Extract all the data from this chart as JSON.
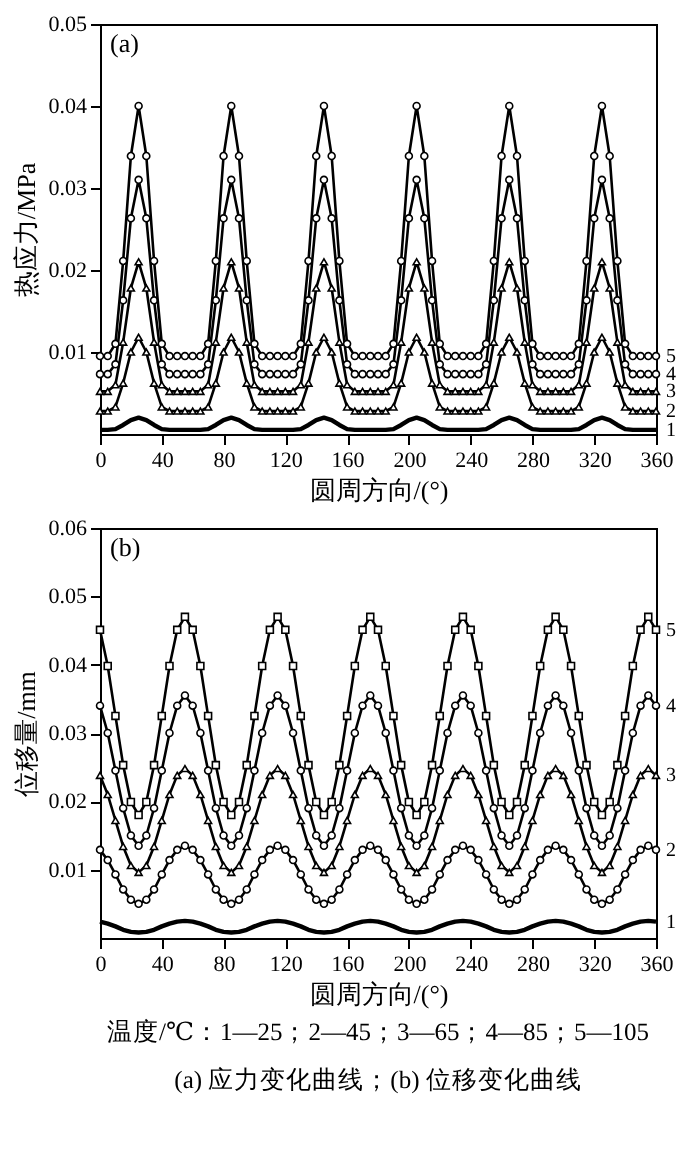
{
  "chart_data": [
    {
      "type": "line",
      "xlabel": "圆周方向/(°)",
      "ylabel": "热应力/MPa",
      "xlim": [
        0,
        360
      ],
      "xticks": [
        0,
        40,
        80,
        120,
        160,
        200,
        240,
        280,
        320,
        360
      ],
      "ylim": [
        0,
        0.05
      ],
      "yticks": [
        0.01,
        0.02,
        0.03,
        0.04,
        0.05
      ],
      "annotations": [
        "(a)"
      ],
      "x": [
        0,
        5,
        10,
        15,
        20,
        25,
        30,
        35,
        40,
        45,
        50,
        55,
        60,
        65,
        70,
        75,
        80,
        85,
        90,
        95,
        100,
        105,
        110,
        115,
        120,
        125,
        130,
        135,
        140,
        145,
        150,
        155,
        160,
        165,
        170,
        175,
        180,
        185,
        190,
        195,
        200,
        205,
        210,
        215,
        220,
        225,
        230,
        235,
        240,
        245,
        250,
        255,
        260,
        265,
        270,
        275,
        280,
        285,
        290,
        295,
        300,
        305,
        310,
        315,
        320,
        325,
        330,
        335,
        340,
        345,
        350,
        355,
        360
      ],
      "series": [
        {
          "name": "1",
          "color": "#000000",
          "values": [
            0.0005,
            0.0005,
            0.0006,
            0.0011,
            0.0017,
            0.002,
            0.0017,
            0.0011,
            0.0006,
            0.0005,
            0.0005,
            0.0005,
            0.0005,
            0.0005,
            0.0006,
            0.0011,
            0.0017,
            0.002,
            0.0017,
            0.0011,
            0.0006,
            0.0005,
            0.0005,
            0.0005,
            0.0005,
            0.0005,
            0.0006,
            0.0011,
            0.0017,
            0.002,
            0.0017,
            0.0011,
            0.0006,
            0.0005,
            0.0005,
            0.0005,
            0.0005,
            0.0005,
            0.0006,
            0.0011,
            0.0017,
            0.002,
            0.0017,
            0.0011,
            0.0006,
            0.0005,
            0.0005,
            0.0005,
            0.0005,
            0.0005,
            0.0006,
            0.0011,
            0.0017,
            0.002,
            0.0017,
            0.0011,
            0.0006,
            0.0005,
            0.0005,
            0.0005,
            0.0005,
            0.0005,
            0.0006,
            0.0011,
            0.0017,
            0.002,
            0.0017,
            0.0011,
            0.0006,
            0.0005,
            0.0005,
            0.0005,
            0.0005
          ]
        },
        {
          "name": "2",
          "color": "#000000",
          "marker": "triangle",
          "values": [
            0.0028,
            0.0028,
            0.0033,
            0.0062,
            0.01,
            0.0118,
            0.01,
            0.0062,
            0.0033,
            0.0028,
            0.0028,
            0.0028,
            0.0028,
            0.0028,
            0.0033,
            0.0062,
            0.01,
            0.0118,
            0.01,
            0.0062,
            0.0033,
            0.0028,
            0.0028,
            0.0028,
            0.0028,
            0.0028,
            0.0033,
            0.0062,
            0.01,
            0.0118,
            0.01,
            0.0062,
            0.0033,
            0.0028,
            0.0028,
            0.0028,
            0.0028,
            0.0028,
            0.0033,
            0.0062,
            0.01,
            0.0118,
            0.01,
            0.0062,
            0.0033,
            0.0028,
            0.0028,
            0.0028,
            0.0028,
            0.0028,
            0.0033,
            0.0062,
            0.01,
            0.0118,
            0.01,
            0.0062,
            0.0033,
            0.0028,
            0.0028,
            0.0028,
            0.0028,
            0.0028,
            0.0033,
            0.0062,
            0.01,
            0.0118,
            0.01,
            0.0062,
            0.0033,
            0.0028,
            0.0028,
            0.0028,
            0.0028
          ]
        },
        {
          "name": "3",
          "color": "#000000",
          "marker": "triangle",
          "values": [
            0.0052,
            0.0052,
            0.006,
            0.0112,
            0.0178,
            0.021,
            0.0178,
            0.0112,
            0.006,
            0.0052,
            0.0052,
            0.0052,
            0.0052,
            0.0052,
            0.006,
            0.0112,
            0.0178,
            0.021,
            0.0178,
            0.0112,
            0.006,
            0.0052,
            0.0052,
            0.0052,
            0.0052,
            0.0052,
            0.006,
            0.0112,
            0.0178,
            0.021,
            0.0178,
            0.0112,
            0.006,
            0.0052,
            0.0052,
            0.0052,
            0.0052,
            0.0052,
            0.006,
            0.0112,
            0.0178,
            0.021,
            0.0178,
            0.0112,
            0.006,
            0.0052,
            0.0052,
            0.0052,
            0.0052,
            0.0052,
            0.006,
            0.0112,
            0.0178,
            0.021,
            0.0178,
            0.0112,
            0.006,
            0.0052,
            0.0052,
            0.0052,
            0.0052,
            0.0052,
            0.006,
            0.0112,
            0.0178,
            0.021,
            0.0178,
            0.0112,
            0.006,
            0.0052,
            0.0052,
            0.0052,
            0.0052
          ]
        },
        {
          "name": "4",
          "color": "#000000",
          "marker": "circle",
          "values": [
            0.0073,
            0.0073,
            0.0085,
            0.0163,
            0.0263,
            0.031,
            0.0263,
            0.0163,
            0.0085,
            0.0073,
            0.0073,
            0.0073,
            0.0073,
            0.0073,
            0.0085,
            0.0163,
            0.0263,
            0.031,
            0.0263,
            0.0163,
            0.0085,
            0.0073,
            0.0073,
            0.0073,
            0.0073,
            0.0073,
            0.0085,
            0.0163,
            0.0263,
            0.031,
            0.0263,
            0.0163,
            0.0085,
            0.0073,
            0.0073,
            0.0073,
            0.0073,
            0.0073,
            0.0085,
            0.0163,
            0.0263,
            0.031,
            0.0263,
            0.0163,
            0.0085,
            0.0073,
            0.0073,
            0.0073,
            0.0073,
            0.0073,
            0.0085,
            0.0163,
            0.0263,
            0.031,
            0.0263,
            0.0163,
            0.0085,
            0.0073,
            0.0073,
            0.0073,
            0.0073,
            0.0073,
            0.0085,
            0.0163,
            0.0263,
            0.031,
            0.0263,
            0.0163,
            0.0085,
            0.0073,
            0.0073,
            0.0073,
            0.0073
          ]
        },
        {
          "name": "5",
          "color": "#000000",
          "marker": "circle",
          "values": [
            0.0095,
            0.0095,
            0.011,
            0.0211,
            0.0339,
            0.04,
            0.0339,
            0.0211,
            0.011,
            0.0095,
            0.0095,
            0.0095,
            0.0095,
            0.0095,
            0.011,
            0.0211,
            0.0339,
            0.04,
            0.0339,
            0.0211,
            0.011,
            0.0095,
            0.0095,
            0.0095,
            0.0095,
            0.0095,
            0.011,
            0.0211,
            0.0339,
            0.04,
            0.0339,
            0.0211,
            0.011,
            0.0095,
            0.0095,
            0.0095,
            0.0095,
            0.0095,
            0.011,
            0.0211,
            0.0339,
            0.04,
            0.0339,
            0.0211,
            0.011,
            0.0095,
            0.0095,
            0.0095,
            0.0095,
            0.0095,
            0.011,
            0.0211,
            0.0339,
            0.04,
            0.0339,
            0.0211,
            0.011,
            0.0095,
            0.0095,
            0.0095,
            0.0095,
            0.0095,
            0.011,
            0.0211,
            0.0339,
            0.04,
            0.0339,
            0.0211,
            0.011,
            0.0095,
            0.0095,
            0.0095,
            0.0095
          ]
        }
      ]
    },
    {
      "type": "line",
      "xlabel": "圆周方向/(°)",
      "ylabel": "位移量/mm",
      "xlim": [
        0,
        360
      ],
      "xticks": [
        0,
        40,
        80,
        120,
        160,
        200,
        240,
        280,
        320,
        360
      ],
      "ylim": [
        0,
        0.06
      ],
      "yticks": [
        0.01,
        0.02,
        0.03,
        0.04,
        0.05,
        0.06
      ],
      "annotations": [
        "(b)",
        "温度/℃：1—25；2—45；3—65；4—85；5—105",
        "(a) 应力变化曲线；(b) 位移变化曲线"
      ],
      "x": [
        0,
        5,
        10,
        15,
        20,
        25,
        30,
        35,
        40,
        45,
        50,
        55,
        60,
        65,
        70,
        75,
        80,
        85,
        90,
        95,
        100,
        105,
        110,
        115,
        120,
        125,
        130,
        135,
        140,
        145,
        150,
        155,
        160,
        165,
        170,
        175,
        180,
        185,
        190,
        195,
        200,
        205,
        210,
        215,
        220,
        225,
        230,
        235,
        240,
        245,
        250,
        255,
        260,
        265,
        270,
        275,
        280,
        285,
        290,
        295,
        300,
        305,
        310,
        315,
        320,
        325,
        330,
        335,
        340,
        345,
        350,
        355,
        360
      ],
      "series": [
        {
          "name": "1",
          "color": "#000000",
          "values": [
            0.0024,
            0.0021,
            0.0017,
            0.0012,
            0.0009,
            0.0008,
            0.0009,
            0.0012,
            0.0017,
            0.0021,
            0.0024,
            0.0025,
            0.0024,
            0.0021,
            0.0017,
            0.0012,
            0.0009,
            0.0008,
            0.0009,
            0.0012,
            0.0017,
            0.0021,
            0.0024,
            0.0025,
            0.0024,
            0.0021,
            0.0017,
            0.0012,
            0.0009,
            0.0008,
            0.0009,
            0.0012,
            0.0017,
            0.0021,
            0.0024,
            0.0025,
            0.0024,
            0.0021,
            0.0017,
            0.0012,
            0.0009,
            0.0008,
            0.0009,
            0.0012,
            0.0017,
            0.0021,
            0.0024,
            0.0025,
            0.0024,
            0.0021,
            0.0017,
            0.0012,
            0.0009,
            0.0008,
            0.0009,
            0.0012,
            0.0017,
            0.0021,
            0.0024,
            0.0025,
            0.0024,
            0.0021,
            0.0017,
            0.0012,
            0.0009,
            0.0008,
            0.0009,
            0.0012,
            0.0017,
            0.0021,
            0.0024,
            0.0025,
            0.0024
          ]
        },
        {
          "name": "2",
          "color": "#000000",
          "marker": "circle",
          "values": [
            0.0129,
            0.0114,
            0.0093,
            0.0071,
            0.0056,
            0.005,
            0.0056,
            0.0071,
            0.0093,
            0.0114,
            0.0129,
            0.0135,
            0.0129,
            0.0114,
            0.0093,
            0.0071,
            0.0056,
            0.005,
            0.0056,
            0.0071,
            0.0093,
            0.0114,
            0.0129,
            0.0135,
            0.0129,
            0.0114,
            0.0093,
            0.0071,
            0.0056,
            0.005,
            0.0056,
            0.0071,
            0.0093,
            0.0114,
            0.0129,
            0.0135,
            0.0129,
            0.0114,
            0.0093,
            0.0071,
            0.0056,
            0.005,
            0.0056,
            0.0071,
            0.0093,
            0.0114,
            0.0129,
            0.0135,
            0.0129,
            0.0114,
            0.0093,
            0.0071,
            0.0056,
            0.005,
            0.0056,
            0.0071,
            0.0093,
            0.0114,
            0.0129,
            0.0135,
            0.0129,
            0.0114,
            0.0093,
            0.0071,
            0.0056,
            0.005,
            0.0056,
            0.0071,
            0.0093,
            0.0114,
            0.0129,
            0.0135,
            0.0129
          ]
        },
        {
          "name": "3",
          "color": "#000000",
          "marker": "triangle",
          "values": [
            0.0238,
            0.021,
            0.0172,
            0.0134,
            0.0106,
            0.0096,
            0.0106,
            0.0134,
            0.0172,
            0.021,
            0.0238,
            0.0248,
            0.0238,
            0.021,
            0.0172,
            0.0134,
            0.0106,
            0.0096,
            0.0106,
            0.0134,
            0.0172,
            0.021,
            0.0238,
            0.0248,
            0.0238,
            0.021,
            0.0172,
            0.0134,
            0.0106,
            0.0096,
            0.0106,
            0.0134,
            0.0172,
            0.021,
            0.0238,
            0.0248,
            0.0238,
            0.021,
            0.0172,
            0.0134,
            0.0106,
            0.0096,
            0.0106,
            0.0134,
            0.0172,
            0.021,
            0.0238,
            0.0248,
            0.0238,
            0.021,
            0.0172,
            0.0134,
            0.0106,
            0.0096,
            0.0106,
            0.0134,
            0.0172,
            0.021,
            0.0238,
            0.0248,
            0.0238,
            0.021,
            0.0172,
            0.0134,
            0.0106,
            0.0096,
            0.0106,
            0.0134,
            0.0172,
            0.021,
            0.0238,
            0.0248,
            0.0238
          ]
        },
        {
          "name": "4",
          "color": "#000000",
          "marker": "circle",
          "values": [
            0.034,
            0.03,
            0.0245,
            0.019,
            0.015,
            0.0135,
            0.015,
            0.019,
            0.0245,
            0.03,
            0.034,
            0.0355,
            0.034,
            0.03,
            0.0245,
            0.019,
            0.015,
            0.0135,
            0.015,
            0.019,
            0.0245,
            0.03,
            0.034,
            0.0355,
            0.034,
            0.03,
            0.0245,
            0.019,
            0.015,
            0.0135,
            0.015,
            0.019,
            0.0245,
            0.03,
            0.034,
            0.0355,
            0.034,
            0.03,
            0.0245,
            0.019,
            0.015,
            0.0135,
            0.015,
            0.019,
            0.0245,
            0.03,
            0.034,
            0.0355,
            0.034,
            0.03,
            0.0245,
            0.019,
            0.015,
            0.0135,
            0.015,
            0.019,
            0.0245,
            0.03,
            0.034,
            0.0355,
            0.034,
            0.03,
            0.0245,
            0.019,
            0.015,
            0.0135,
            0.015,
            0.019,
            0.0245,
            0.03,
            0.034,
            0.0355,
            0.034
          ]
        },
        {
          "name": "5",
          "color": "#000000",
          "marker": "square",
          "values": [
            0.0451,
            0.0398,
            0.0325,
            0.0253,
            0.0199,
            0.018,
            0.0199,
            0.0253,
            0.0325,
            0.0398,
            0.0451,
            0.047,
            0.0451,
            0.0398,
            0.0325,
            0.0253,
            0.0199,
            0.018,
            0.0199,
            0.0253,
            0.0325,
            0.0398,
            0.0451,
            0.047,
            0.0451,
            0.0398,
            0.0325,
            0.0253,
            0.0199,
            0.018,
            0.0199,
            0.0253,
            0.0325,
            0.0398,
            0.0451,
            0.047,
            0.0451,
            0.0398,
            0.0325,
            0.0253,
            0.0199,
            0.018,
            0.0199,
            0.0253,
            0.0325,
            0.0398,
            0.0451,
            0.047,
            0.0451,
            0.0398,
            0.0325,
            0.0253,
            0.0199,
            0.018,
            0.0199,
            0.0253,
            0.0325,
            0.0398,
            0.0451,
            0.047,
            0.0451,
            0.0398,
            0.0325,
            0.0253,
            0.0199,
            0.018,
            0.0199,
            0.0253,
            0.0325,
            0.0398,
            0.0451,
            0.047,
            0.0451
          ]
        }
      ]
    }
  ]
}
